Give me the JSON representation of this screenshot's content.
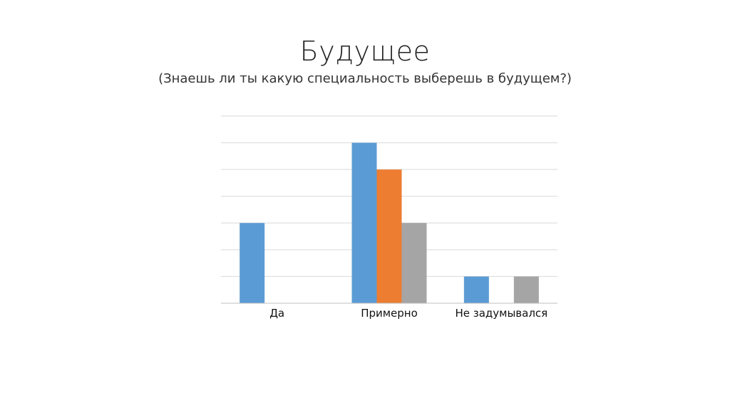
{
  "slide": {
    "title": "Будущее",
    "subtitle": "(Знаешь ли ты какую специальность выберешь в будущем?)"
  },
  "chart_data": {
    "type": "bar",
    "categories": [
      "Да",
      "Примерно",
      "Не задумывался"
    ],
    "series": [
      {
        "values": [
          3,
          6,
          1
        ],
        "color": "#5B9BD5"
      },
      {
        "values": [
          0,
          5,
          0
        ],
        "color": "#ED7D31"
      },
      {
        "values": [
          0,
          3,
          1
        ],
        "color": "#A5A5A5"
      }
    ],
    "ylim": [
      0,
      7
    ],
    "grid": true,
    "legend": "none",
    "title": "",
    "xlabel": "",
    "ylabel": ""
  }
}
